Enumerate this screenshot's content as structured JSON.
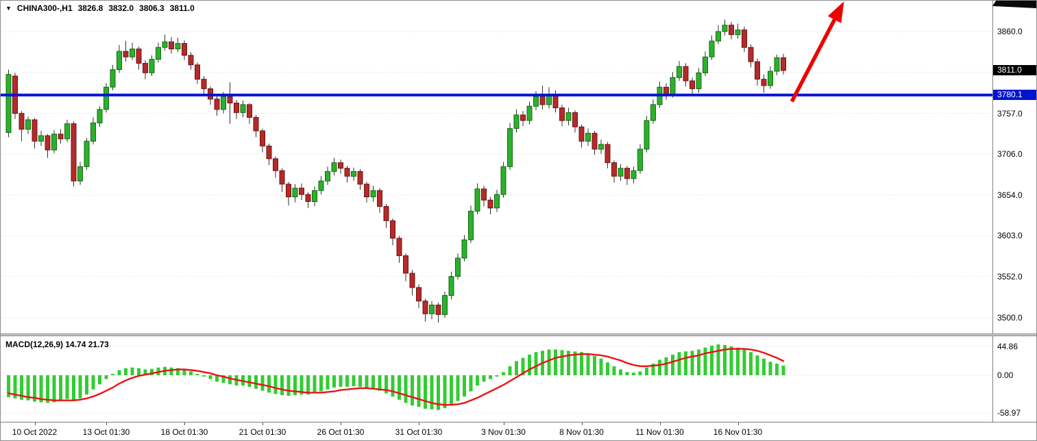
{
  "header": {
    "expander": "▼",
    "symbol": "CHINA300-,H1",
    "open": "3826.8",
    "high": "3832.0",
    "low": "3806.3",
    "close": "3811.0"
  },
  "indicator": {
    "label": "MACD(12,26,9) 14.74 21.73"
  },
  "colors": {
    "up": "#2bb12b",
    "up_border": "#156915",
    "down": "#b52a2a",
    "down_border": "#6e1414",
    "wick": "#303030",
    "grid": "#d2d2d2",
    "hline": "#0014d2",
    "macd_bar": "#33cc33",
    "macd_signal": "#ee1111",
    "arrow": "#ee0000",
    "price_box_bg": "#000000",
    "hline_box_bg": "#0014d2"
  },
  "chart_data": [
    {
      "type": "candlestick",
      "symbol": "CHINA300-",
      "period": "H1",
      "title": "CHINA300-,H1",
      "ohlc_display": {
        "open": 3826.8,
        "high": 3832.0,
        "low": 3806.3,
        "close": 3811.0
      },
      "ylim": [
        3487,
        3894
      ],
      "y_ticks": [
        {
          "label": "3860.0",
          "price": 3860.0
        },
        {
          "label": "3757.0",
          "price": 3757.0
        },
        {
          "label": "3706.0",
          "price": 3706.0
        },
        {
          "label": "3654.0",
          "price": 3654.0
        },
        {
          "label": "3603.0",
          "price": 3603.0
        },
        {
          "label": "3552.0",
          "price": 3552.0
        },
        {
          "label": "3500.0",
          "price": 3500.0
        }
      ],
      "grid_prices": [
        3860,
        3808.5,
        3757,
        3706,
        3654,
        3603,
        3552,
        3500
      ],
      "current_price": {
        "label": "3811.0",
        "price": 3811.0
      },
      "hline": {
        "label": "3780.1",
        "price": 3780.1
      },
      "arrow": {
        "start": {
          "index": 120.3,
          "price": 3772
        },
        "end": {
          "index": 128.3,
          "price": 3898
        }
      },
      "x_ticks": [
        {
          "label": "10 Oct 2022",
          "index": 4
        },
        {
          "label": "13 Oct 01:30",
          "index": 15
        },
        {
          "label": "18 Oct 01:30",
          "index": 27
        },
        {
          "label": "21 Oct 01:30",
          "index": 39
        },
        {
          "label": "26 Oct 01:30",
          "index": 51
        },
        {
          "label": "31 Oct 01:30",
          "index": 63
        },
        {
          "label": "3 Nov 01:30",
          "index": 76
        },
        {
          "label": "8 Nov 01:30",
          "index": 88
        },
        {
          "label": "11 Nov 01:30",
          "index": 100
        },
        {
          "label": "16 Nov 01:30",
          "index": 112
        }
      ],
      "candles": [
        [
          3733,
          3812,
          3727,
          3806
        ],
        [
          3804,
          3808,
          3750,
          3757
        ],
        [
          3757,
          3760,
          3722,
          3737
        ],
        [
          3737,
          3753,
          3731,
          3749
        ],
        [
          3749,
          3751,
          3713,
          3722
        ],
        [
          3722,
          3735,
          3716,
          3729
        ],
        [
          3729,
          3731,
          3701,
          3711
        ],
        [
          3711,
          3736,
          3707,
          3731
        ],
        [
          3731,
          3737,
          3719,
          3725
        ],
        [
          3725,
          3749,
          3721,
          3744
        ],
        [
          3744,
          3747,
          3665,
          3672
        ],
        [
          3672,
          3696,
          3667,
          3690
        ],
        [
          3690,
          3726,
          3686,
          3722
        ],
        [
          3722,
          3752,
          3718,
          3745
        ],
        [
          3745,
          3766,
          3740,
          3762
        ],
        [
          3762,
          3795,
          3758,
          3790
        ],
        [
          3790,
          3818,
          3786,
          3812
        ],
        [
          3812,
          3843,
          3808,
          3835
        ],
        [
          3835,
          3848,
          3822,
          3828
        ],
        [
          3828,
          3846,
          3824,
          3838
        ],
        [
          3838,
          3841,
          3812,
          3820
        ],
        [
          3820,
          3824,
          3800,
          3808
        ],
        [
          3808,
          3830,
          3804,
          3825
        ],
        [
          3825,
          3846,
          3821,
          3840
        ],
        [
          3840,
          3856,
          3836,
          3847
        ],
        [
          3847,
          3853,
          3832,
          3838
        ],
        [
          3838,
          3852,
          3834,
          3845
        ],
        [
          3845,
          3849,
          3824,
          3830
        ],
        [
          3830,
          3834,
          3812,
          3818
        ],
        [
          3818,
          3821,
          3794,
          3800
        ],
        [
          3800,
          3804,
          3781,
          3788
        ],
        [
          3788,
          3791,
          3768,
          3775
        ],
        [
          3775,
          3779,
          3754,
          3762
        ],
        [
          3762,
          3784,
          3757,
          3778
        ],
        [
          3778,
          3796,
          3744,
          3770
        ],
        [
          3770,
          3774,
          3750,
          3758
        ],
        [
          3758,
          3773,
          3752,
          3768
        ],
        [
          3768,
          3770,
          3744,
          3752
        ],
        [
          3752,
          3755,
          3727,
          3735
        ],
        [
          3735,
          3738,
          3708,
          3716
        ],
        [
          3716,
          3719,
          3692,
          3700
        ],
        [
          3700,
          3703,
          3676,
          3685
        ],
        [
          3685,
          3688,
          3658,
          3668
        ],
        [
          3668,
          3671,
          3641,
          3652
        ],
        [
          3652,
          3668,
          3645,
          3663
        ],
        [
          3663,
          3669,
          3648,
          3655
        ],
        [
          3655,
          3658,
          3638,
          3646
        ],
        [
          3646,
          3665,
          3640,
          3660
        ],
        [
          3660,
          3678,
          3655,
          3672
        ],
        [
          3672,
          3690,
          3667,
          3684
        ],
        [
          3684,
          3701,
          3679,
          3695
        ],
        [
          3695,
          3699,
          3681,
          3688
        ],
        [
          3688,
          3691,
          3670,
          3678
        ],
        [
          3678,
          3689,
          3672,
          3684
        ],
        [
          3684,
          3687,
          3661,
          3668
        ],
        [
          3668,
          3671,
          3645,
          3652
        ],
        [
          3652,
          3666,
          3646,
          3660
        ],
        [
          3660,
          3663,
          3632,
          3640
        ],
        [
          3640,
          3643,
          3613,
          3622
        ],
        [
          3622,
          3625,
          3591,
          3600
        ],
        [
          3600,
          3603,
          3569,
          3578
        ],
        [
          3578,
          3581,
          3546,
          3556
        ],
        [
          3556,
          3560,
          3528,
          3538
        ],
        [
          3538,
          3542,
          3512,
          3521
        ],
        [
          3521,
          3524,
          3495,
          3505
        ],
        [
          3505,
          3521,
          3498,
          3516
        ],
        [
          3516,
          3519,
          3494,
          3504
        ],
        [
          3504,
          3533,
          3500,
          3528
        ],
        [
          3528,
          3558,
          3523,
          3552
        ],
        [
          3552,
          3581,
          3548,
          3575
        ],
        [
          3575,
          3604,
          3571,
          3598
        ],
        [
          3598,
          3641,
          3594,
          3634
        ],
        [
          3634,
          3669,
          3630,
          3662
        ],
        [
          3662,
          3666,
          3640,
          3648
        ],
        [
          3648,
          3652,
          3630,
          3638
        ],
        [
          3638,
          3661,
          3633,
          3655
        ],
        [
          3655,
          3696,
          3651,
          3690
        ],
        [
          3690,
          3745,
          3686,
          3738
        ],
        [
          3738,
          3762,
          3733,
          3755
        ],
        [
          3755,
          3760,
          3741,
          3748
        ],
        [
          3748,
          3772,
          3743,
          3766
        ],
        [
          3766,
          3785,
          3761,
          3778
        ],
        [
          3778,
          3792,
          3762,
          3768
        ],
        [
          3768,
          3790,
          3763,
          3780
        ],
        [
          3780,
          3786,
          3758,
          3764
        ],
        [
          3764,
          3768,
          3741,
          3748
        ],
        [
          3748,
          3764,
          3742,
          3758
        ],
        [
          3758,
          3761,
          3733,
          3740
        ],
        [
          3740,
          3743,
          3714,
          3722
        ],
        [
          3722,
          3738,
          3716,
          3732
        ],
        [
          3732,
          3735,
          3705,
          3712
        ],
        [
          3712,
          3724,
          3706,
          3718
        ],
        [
          3718,
          3721,
          3688,
          3695
        ],
        [
          3695,
          3698,
          3670,
          3678
        ],
        [
          3678,
          3693,
          3672,
          3688
        ],
        [
          3688,
          3691,
          3667,
          3675
        ],
        [
          3675,
          3690,
          3669,
          3685
        ],
        [
          3685,
          3718,
          3681,
          3712
        ],
        [
          3712,
          3754,
          3708,
          3748
        ],
        [
          3748,
          3775,
          3744,
          3768
        ],
        [
          3768,
          3797,
          3764,
          3790
        ],
        [
          3790,
          3795,
          3774,
          3781
        ],
        [
          3781,
          3809,
          3777,
          3802
        ],
        [
          3802,
          3823,
          3798,
          3816
        ],
        [
          3816,
          3820,
          3791,
          3798
        ],
        [
          3798,
          3802,
          3781,
          3788
        ],
        [
          3788,
          3814,
          3783,
          3808
        ],
        [
          3808,
          3835,
          3804,
          3828
        ],
        [
          3828,
          3855,
          3824,
          3848
        ],
        [
          3848,
          3868,
          3844,
          3860
        ],
        [
          3860,
          3875,
          3855,
          3868
        ],
        [
          3868,
          3872,
          3850,
          3856
        ],
        [
          3856,
          3870,
          3851,
          3862
        ],
        [
          3862,
          3866,
          3834,
          3840
        ],
        [
          3840,
          3844,
          3815,
          3822
        ],
        [
          3822,
          3826,
          3792,
          3800
        ],
        [
          3800,
          3806,
          3783,
          3792
        ],
        [
          3792,
          3816,
          3788,
          3810
        ],
        [
          3810,
          3831,
          3805,
          3827
        ],
        [
          3827,
          3832,
          3806,
          3811
        ]
      ]
    },
    {
      "type": "macd",
      "name": "MACD",
      "params": [
        12,
        26,
        9
      ],
      "display_values": [
        14.74,
        21.73
      ],
      "y_ticks": [
        {
          "label": "44.86",
          "value": 44.86
        },
        {
          "label": "0.00",
          "value": 0
        },
        {
          "label": "-58.97",
          "value": -58.97
        }
      ],
      "histogram": [
        -34,
        -36,
        -38,
        -39,
        -41,
        -42,
        -43,
        -42,
        -40,
        -37,
        -40,
        -36,
        -30,
        -22,
        -14,
        -6,
        2,
        8,
        11,
        12,
        11,
        9,
        10,
        12,
        13,
        12,
        11,
        9,
        6,
        2,
        -2,
        -6,
        -10,
        -12,
        -14,
        -16,
        -16,
        -18,
        -21,
        -24,
        -27,
        -29,
        -31,
        -32,
        -31,
        -30,
        -30,
        -28,
        -25,
        -22,
        -19,
        -18,
        -18,
        -17,
        -18,
        -21,
        -21,
        -24,
        -28,
        -33,
        -38,
        -43,
        -47,
        -49,
        -52,
        -53,
        -54,
        -51,
        -46,
        -40,
        -33,
        -25,
        -16,
        -10,
        -6,
        -2,
        5,
        14,
        22,
        27,
        32,
        36,
        38,
        40,
        40,
        39,
        38,
        37,
        36,
        34,
        30,
        26,
        20,
        14,
        9,
        5,
        4,
        6,
        12,
        18,
        24,
        28,
        32,
        36,
        37,
        38,
        40,
        43,
        46,
        48,
        47,
        45,
        43,
        40,
        36,
        31,
        26,
        21,
        18,
        15
      ],
      "signal": [
        -28,
        -30,
        -32,
        -34,
        -35,
        -37,
        -38,
        -39,
        -39,
        -39,
        -39,
        -38,
        -36,
        -33,
        -29,
        -24,
        -19,
        -13,
        -8,
        -4,
        -1,
        1,
        3,
        5,
        7,
        8,
        9,
        9,
        8,
        7,
        5,
        3,
        0,
        -2,
        -5,
        -7,
        -9,
        -11,
        -13,
        -15,
        -17,
        -20,
        -22,
        -24,
        -25,
        -26,
        -27,
        -27,
        -27,
        -26,
        -25,
        -23,
        -22,
        -21,
        -20,
        -20,
        -21,
        -22,
        -23,
        -25,
        -28,
        -31,
        -34,
        -37,
        -40,
        -43,
        -45,
        -46,
        -46,
        -45,
        -43,
        -39,
        -35,
        -30,
        -25,
        -20,
        -15,
        -9,
        -3,
        3,
        9,
        14,
        19,
        23,
        27,
        29,
        31,
        32,
        33,
        33,
        32,
        31,
        29,
        26,
        23,
        19,
        16,
        14,
        14,
        15,
        16,
        18,
        21,
        24,
        27,
        29,
        31,
        34,
        36,
        38,
        40,
        41,
        41,
        41,
        40,
        38,
        35,
        31,
        27,
        22
      ]
    }
  ]
}
